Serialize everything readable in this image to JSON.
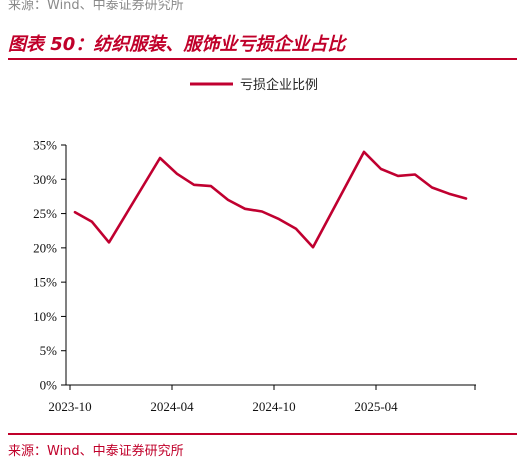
{
  "header": {
    "source_top": "来源：Wind、中泰证券研究所",
    "figure_title": "图表 50：纺织服装、服饰业亏损企业占比"
  },
  "footer": {
    "source": "来源：Wind、中泰证券研究所"
  },
  "colors": {
    "accent": "#c0002a",
    "line": "#c00030"
  },
  "chart_data": {
    "type": "line",
    "title": "",
    "xlabel": "",
    "ylabel": "",
    "ylim": [
      0,
      35
    ],
    "yticks": [
      0,
      5,
      10,
      15,
      20,
      25,
      30,
      35
    ],
    "ytick_labels": [
      "0%",
      "5%",
      "10%",
      "15%",
      "20%",
      "25%",
      "30%",
      "35%"
    ],
    "x_tick_labels": [
      {
        "index": 0,
        "label": "2023-10"
      },
      {
        "index": 6,
        "label": "2024-04"
      },
      {
        "index": 12,
        "label": "2024-10"
      },
      {
        "index": 18,
        "label": "2025-04"
      }
    ],
    "x": [
      "2023-10",
      "2023-11",
      "2023-12",
      "2024-01",
      "2024-02",
      "2024-03",
      "2024-04",
      "2024-05",
      "2024-06",
      "2024-07",
      "2024-08",
      "2024-09",
      "2024-10",
      "2024-11",
      "2024-12",
      "2025-01",
      "2025-02",
      "2025-03",
      "2025-04",
      "2025-05",
      "2025-06",
      "2025-07",
      "2025-08",
      "2025-09",
      "2025-10"
    ],
    "legend_position": "top-center",
    "grid": false,
    "series": [
      {
        "name": "亏损企业比例",
        "values": [
          25.2,
          23.8,
          20.8,
          null,
          null,
          33.1,
          30.8,
          29.2,
          29.0,
          27.0,
          25.7,
          25.3,
          24.2,
          22.8,
          20.1,
          null,
          null,
          34.0,
          31.5,
          30.5,
          30.7,
          28.8,
          27.9,
          27.2,
          null
        ]
      }
    ]
  }
}
